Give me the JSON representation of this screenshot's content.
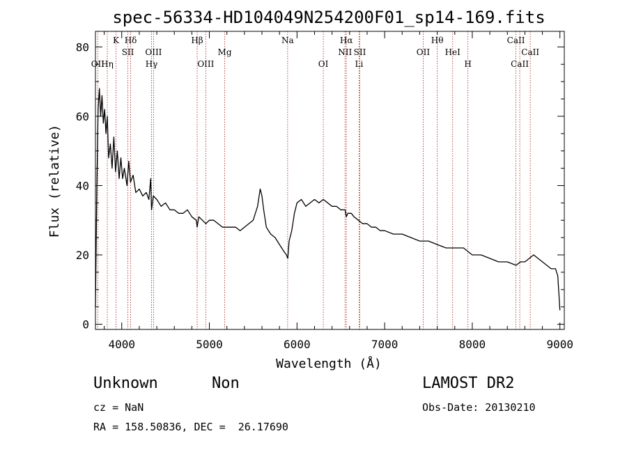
{
  "chart_data": {
    "type": "line",
    "title": "spec-56334-HD104049N254200F01_sp14-169.fits",
    "xlabel": "Wavelength (Å)",
    "ylabel": "Flux (relative)",
    "xlim": [
      3700,
      9050
    ],
    "ylim": [
      -1.5,
      84.5
    ],
    "xticks": [
      4000,
      5000,
      6000,
      7000,
      8000,
      9000
    ],
    "yticks": [
      0,
      20,
      40,
      60,
      80
    ],
    "series": [
      {
        "name": "spectrum",
        "x": [
          3700,
          3715,
          3730,
          3745,
          3760,
          3775,
          3790,
          3805,
          3820,
          3835,
          3850,
          3870,
          3890,
          3910,
          3930,
          3950,
          3970,
          3990,
          4010,
          4030,
          4060,
          4080,
          4100,
          4130,
          4160,
          4200,
          4240,
          4280,
          4310,
          4330,
          4340,
          4360,
          4400,
          4450,
          4500,
          4550,
          4600,
          4650,
          4700,
          4750,
          4800,
          4850,
          4861,
          4880,
          4920,
          4960,
          5000,
          5050,
          5100,
          5150,
          5200,
          5250,
          5300,
          5350,
          5400,
          5450,
          5500,
          5550,
          5580,
          5600,
          5620,
          5650,
          5700,
          5750,
          5800,
          5850,
          5880,
          5895,
          5910,
          5940,
          5970,
          6000,
          6050,
          6100,
          6150,
          6200,
          6250,
          6300,
          6350,
          6400,
          6450,
          6500,
          6550,
          6563,
          6580,
          6620,
          6650,
          6700,
          6750,
          6800,
          6850,
          6900,
          6950,
          7000,
          7100,
          7200,
          7300,
          7400,
          7500,
          7600,
          7700,
          7800,
          7900,
          8000,
          8100,
          8200,
          8300,
          8400,
          8500,
          8550,
          8600,
          8650,
          8700,
          8750,
          8800,
          8850,
          8900,
          8950,
          8975,
          8990,
          9000
        ],
        "y": [
          5,
          38,
          62,
          68,
          60,
          66,
          58,
          62,
          55,
          60,
          48,
          52,
          45,
          54,
          44,
          50,
          42,
          48,
          42,
          45,
          40,
          47,
          41,
          43,
          38,
          39,
          37,
          38,
          36,
          42,
          33,
          37,
          36,
          34,
          35,
          33,
          33,
          32,
          32,
          33,
          31,
          30,
          28,
          31,
          30,
          29,
          30,
          30,
          29,
          28,
          28,
          28,
          28,
          27,
          28,
          29,
          30,
          34,
          39,
          37,
          33,
          28,
          26,
          25,
          23,
          21,
          20,
          19,
          24,
          27,
          32,
          35,
          36,
          34,
          35,
          36,
          35,
          36,
          35,
          34,
          34,
          33,
          33,
          31,
          32,
          32,
          31,
          30,
          29,
          29,
          28,
          28,
          27,
          27,
          26,
          26,
          25,
          24,
          24,
          23,
          22,
          22,
          22,
          20,
          20,
          19,
          18,
          18,
          17,
          18,
          18,
          19,
          20,
          19,
          18,
          17,
          16,
          16,
          14,
          8,
          4
        ]
      }
    ],
    "lines": [
      {
        "wave": 3727,
        "label": "OII",
        "row": 3
      },
      {
        "wave": 3835,
        "label": "Hη",
        "row": 3
      },
      {
        "wave": 3934,
        "label": "K",
        "row": 1
      },
      {
        "wave": 4070,
        "label": "SII",
        "row": 2
      },
      {
        "wave": 4102,
        "label": "Hδ",
        "row": 1
      },
      {
        "wave": 4340,
        "label": "Hγ",
        "row": 3
      },
      {
        "wave": 4363,
        "label": "OIII",
        "row": 2
      },
      {
        "wave": 4861,
        "label": "Hβ",
        "row": 1
      },
      {
        "wave": 4959,
        "label": "OIII",
        "row": 3
      },
      {
        "wave": 5175,
        "label": "Mg",
        "row": 2
      },
      {
        "wave": 5893,
        "label": "Na",
        "row": 1
      },
      {
        "wave": 6300,
        "label": "OI",
        "row": 3
      },
      {
        "wave": 6548,
        "label": "NII",
        "row": 2
      },
      {
        "wave": 6563,
        "label": "Hα",
        "row": 1
      },
      {
        "wave": 6708,
        "label": "Li",
        "row": 3
      },
      {
        "wave": 6717,
        "label": "SII",
        "row": 2
      },
      {
        "wave": 7440,
        "label": "OII",
        "row": 2
      },
      {
        "wave": 7600,
        "label": "Hθ",
        "row": 1
      },
      {
        "wave": 7776,
        "label": "HeI",
        "row": 2
      },
      {
        "wave": 7950,
        "label": "H",
        "row": 3
      },
      {
        "wave": 8498,
        "label": "CaII",
        "row": 1
      },
      {
        "wave": 8542,
        "label": "CaII",
        "row": 3
      },
      {
        "wave": 8662,
        "label": "CaII",
        "row": 2
      }
    ]
  },
  "info": {
    "class_label": "Unknown",
    "subclass_label": "Non",
    "cz": "cz = NaN",
    "coords": "RA = 158.50836, DEC =  26.17690",
    "survey": "LAMOST DR2",
    "obs_date": "Obs-Date: 20130210"
  },
  "colors": {
    "line_marker": "#b03030",
    "spectrum": "#000000"
  }
}
